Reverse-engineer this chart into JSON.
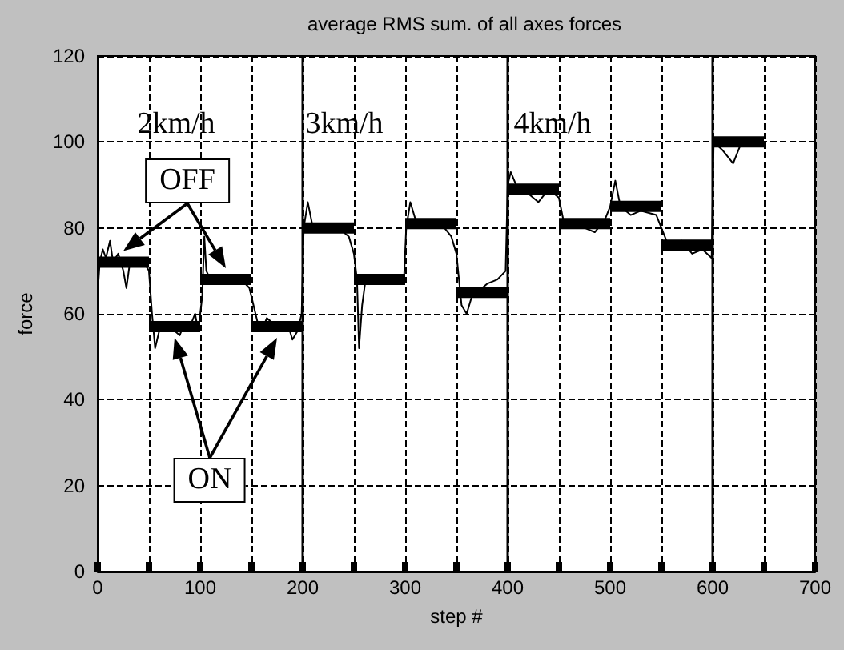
{
  "chart_data": {
    "type": "line",
    "title": "average RMS sum. of all axes forces",
    "xlabel": "step #",
    "ylabel": "force",
    "xlim": [
      0,
      700
    ],
    "xticks": [
      0,
      100,
      200,
      300,
      400,
      500,
      600,
      700
    ],
    "ylim": [
      0,
      120
    ],
    "yticks": [
      0,
      20,
      40,
      60,
      80,
      100,
      120
    ],
    "grid": true,
    "marker": "none",
    "line_style": "solid",
    "series": [
      {
        "color": "#000000",
        "x": [
          0,
          2,
          5,
          8,
          12,
          15,
          20,
          25,
          28,
          32,
          38,
          45,
          50,
          53,
          56,
          60,
          70,
          80,
          85,
          90,
          95,
          98,
          102,
          104,
          106,
          110,
          120,
          130,
          140,
          148,
          152,
          156,
          160,
          165,
          175,
          185,
          190,
          195,
          199,
          201,
          205,
          210,
          220,
          235,
          245,
          250,
          253,
          255,
          258,
          262,
          270,
          280,
          295,
          299,
          301,
          305,
          310,
          320,
          335,
          345,
          350,
          355,
          360,
          365,
          370,
          380,
          390,
          398,
          400,
          403,
          410,
          420,
          430,
          440,
          450,
          455,
          465,
          475,
          485,
          495,
          500,
          505,
          510,
          520,
          530,
          545,
          550,
          555,
          560,
          570,
          580,
          590,
          599,
          601,
          610,
          620,
          630,
          640,
          650
        ],
        "values": [
          65,
          72,
          75,
          73,
          77,
          72,
          74,
          70,
          66,
          73,
          71,
          72,
          70,
          60,
          52,
          56,
          57,
          55,
          58,
          57,
          60,
          56,
          64,
          78,
          70,
          68,
          67,
          69,
          68,
          66,
          62,
          58,
          56,
          59,
          57,
          58,
          54,
          56,
          60,
          80,
          86,
          80,
          79,
          80,
          78,
          74,
          68,
          52,
          62,
          69,
          68,
          69,
          68,
          69,
          80,
          86,
          82,
          80,
          81,
          78,
          74,
          62,
          60,
          64,
          65,
          67,
          68,
          70,
          90,
          93,
          89,
          88,
          86,
          89,
          87,
          81,
          82,
          80,
          79,
          82,
          85,
          91,
          85,
          83,
          84,
          83,
          80,
          77,
          75,
          77,
          74,
          75,
          73,
          100,
          98,
          95,
          101,
          99,
          100
        ]
      },
      {
        "color": "#000000",
        "x": [
          0,
          50
        ],
        "values": [
          72,
          72
        ]
      },
      {
        "color": "#000000",
        "x": [
          50,
          100
        ],
        "values": [
          57,
          57
        ]
      },
      {
        "color": "#000000",
        "x": [
          100,
          150
        ],
        "values": [
          68,
          68
        ]
      },
      {
        "color": "#000000",
        "x": [
          150,
          200
        ],
        "values": [
          57,
          57
        ]
      },
      {
        "color": "#000000",
        "x": [
          200,
          250
        ],
        "values": [
          80,
          80
        ]
      },
      {
        "color": "#000000",
        "x": [
          250,
          300
        ],
        "values": [
          68,
          68
        ]
      },
      {
        "color": "#000000",
        "x": [
          300,
          350
        ],
        "values": [
          81,
          81
        ]
      },
      {
        "color": "#000000",
        "x": [
          350,
          400
        ],
        "values": [
          65,
          65
        ]
      },
      {
        "color": "#000000",
        "x": [
          400,
          450
        ],
        "values": [
          89,
          89
        ]
      },
      {
        "color": "#000000",
        "x": [
          450,
          500
        ],
        "values": [
          81,
          81
        ]
      },
      {
        "color": "#000000",
        "x": [
          500,
          550
        ],
        "values": [
          85,
          85
        ]
      },
      {
        "color": "#000000",
        "x": [
          550,
          600
        ],
        "values": [
          76,
          76
        ]
      },
      {
        "color": "#000000",
        "x": [
          600,
          650
        ],
        "values": [
          100,
          100
        ]
      }
    ],
    "ref_lines": [
      {
        "axis": "x",
        "value": 200,
        "color": "#000000",
        "line_style": "solid"
      },
      {
        "axis": "x",
        "value": 400,
        "color": "#000000",
        "line_style": "solid"
      },
      {
        "axis": "x",
        "value": 600,
        "color": "#000000",
        "line_style": "solid"
      }
    ],
    "annotations": [
      "2km/h",
      "3km/h",
      "4km/h",
      "OFF",
      "ON"
    ]
  }
}
